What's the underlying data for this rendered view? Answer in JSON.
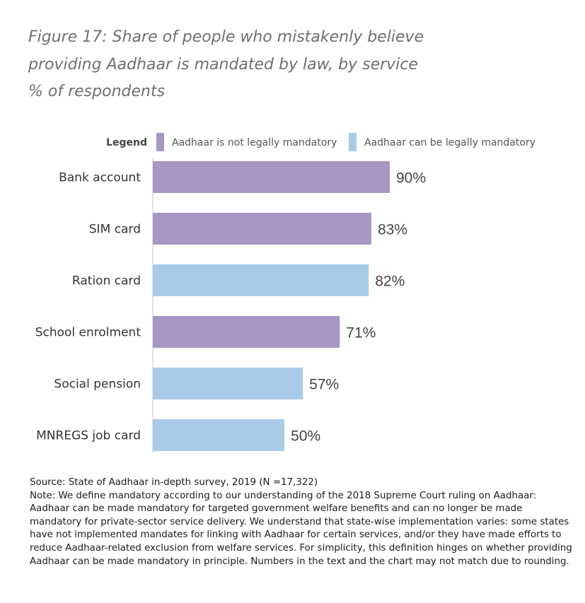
{
  "title": {
    "line1": "Figure 17: Share of people who mistakenly believe",
    "line2": "providing Aadhaar is mandated by law, by service",
    "line3": "% of respondents"
  },
  "chart_data": {
    "type": "bar",
    "orientation": "horizontal",
    "title": "Figure 17: Share of people who mistakenly believe providing Aadhaar is mandated by law, by service",
    "subtitle": "% of respondents",
    "legend_title": "Legend",
    "legend_position": "top",
    "series": [
      {
        "name": "Aadhaar is not legally mandatory",
        "color": "#a797c3"
      },
      {
        "name": "Aadhaar can be legally mandatory",
        "color": "#a9cbe8"
      }
    ],
    "categories": [
      "Bank account",
      "SIM card",
      "Ration card",
      "School enrolment",
      "Social pension",
      "MNREGS job card"
    ],
    "values": [
      90,
      83,
      82,
      71,
      57,
      50
    ],
    "value_series": [
      0,
      0,
      1,
      0,
      1,
      1
    ],
    "data_labels": [
      "90%",
      "83%",
      "82%",
      "71%",
      "57%",
      "50%"
    ],
    "xlim": [
      0,
      100
    ],
    "xlabel": "",
    "ylabel": "",
    "grid": false
  },
  "notes": {
    "source": "Source: State of Aadhaar in-depth survey, 2019 (N =17,322)",
    "note": "Note: We define mandatory according to our understanding of the 2018 Supreme Court ruling on Aadhaar: Aadhaar can be made mandatory for targeted government welfare benefits and can no longer be made mandatory for private-sector service delivery. We understand that state-wise implementation varies: some states have not implemented mandates for linking with Aadhaar for certain services, and/or they have made efforts to reduce Aadhaar-related exclusion from welfare services. For simplicity, this definition hinges on whether providing Aadhaar can be made mandatory in principle. Numbers in the text and the chart may not match due to rounding."
  }
}
